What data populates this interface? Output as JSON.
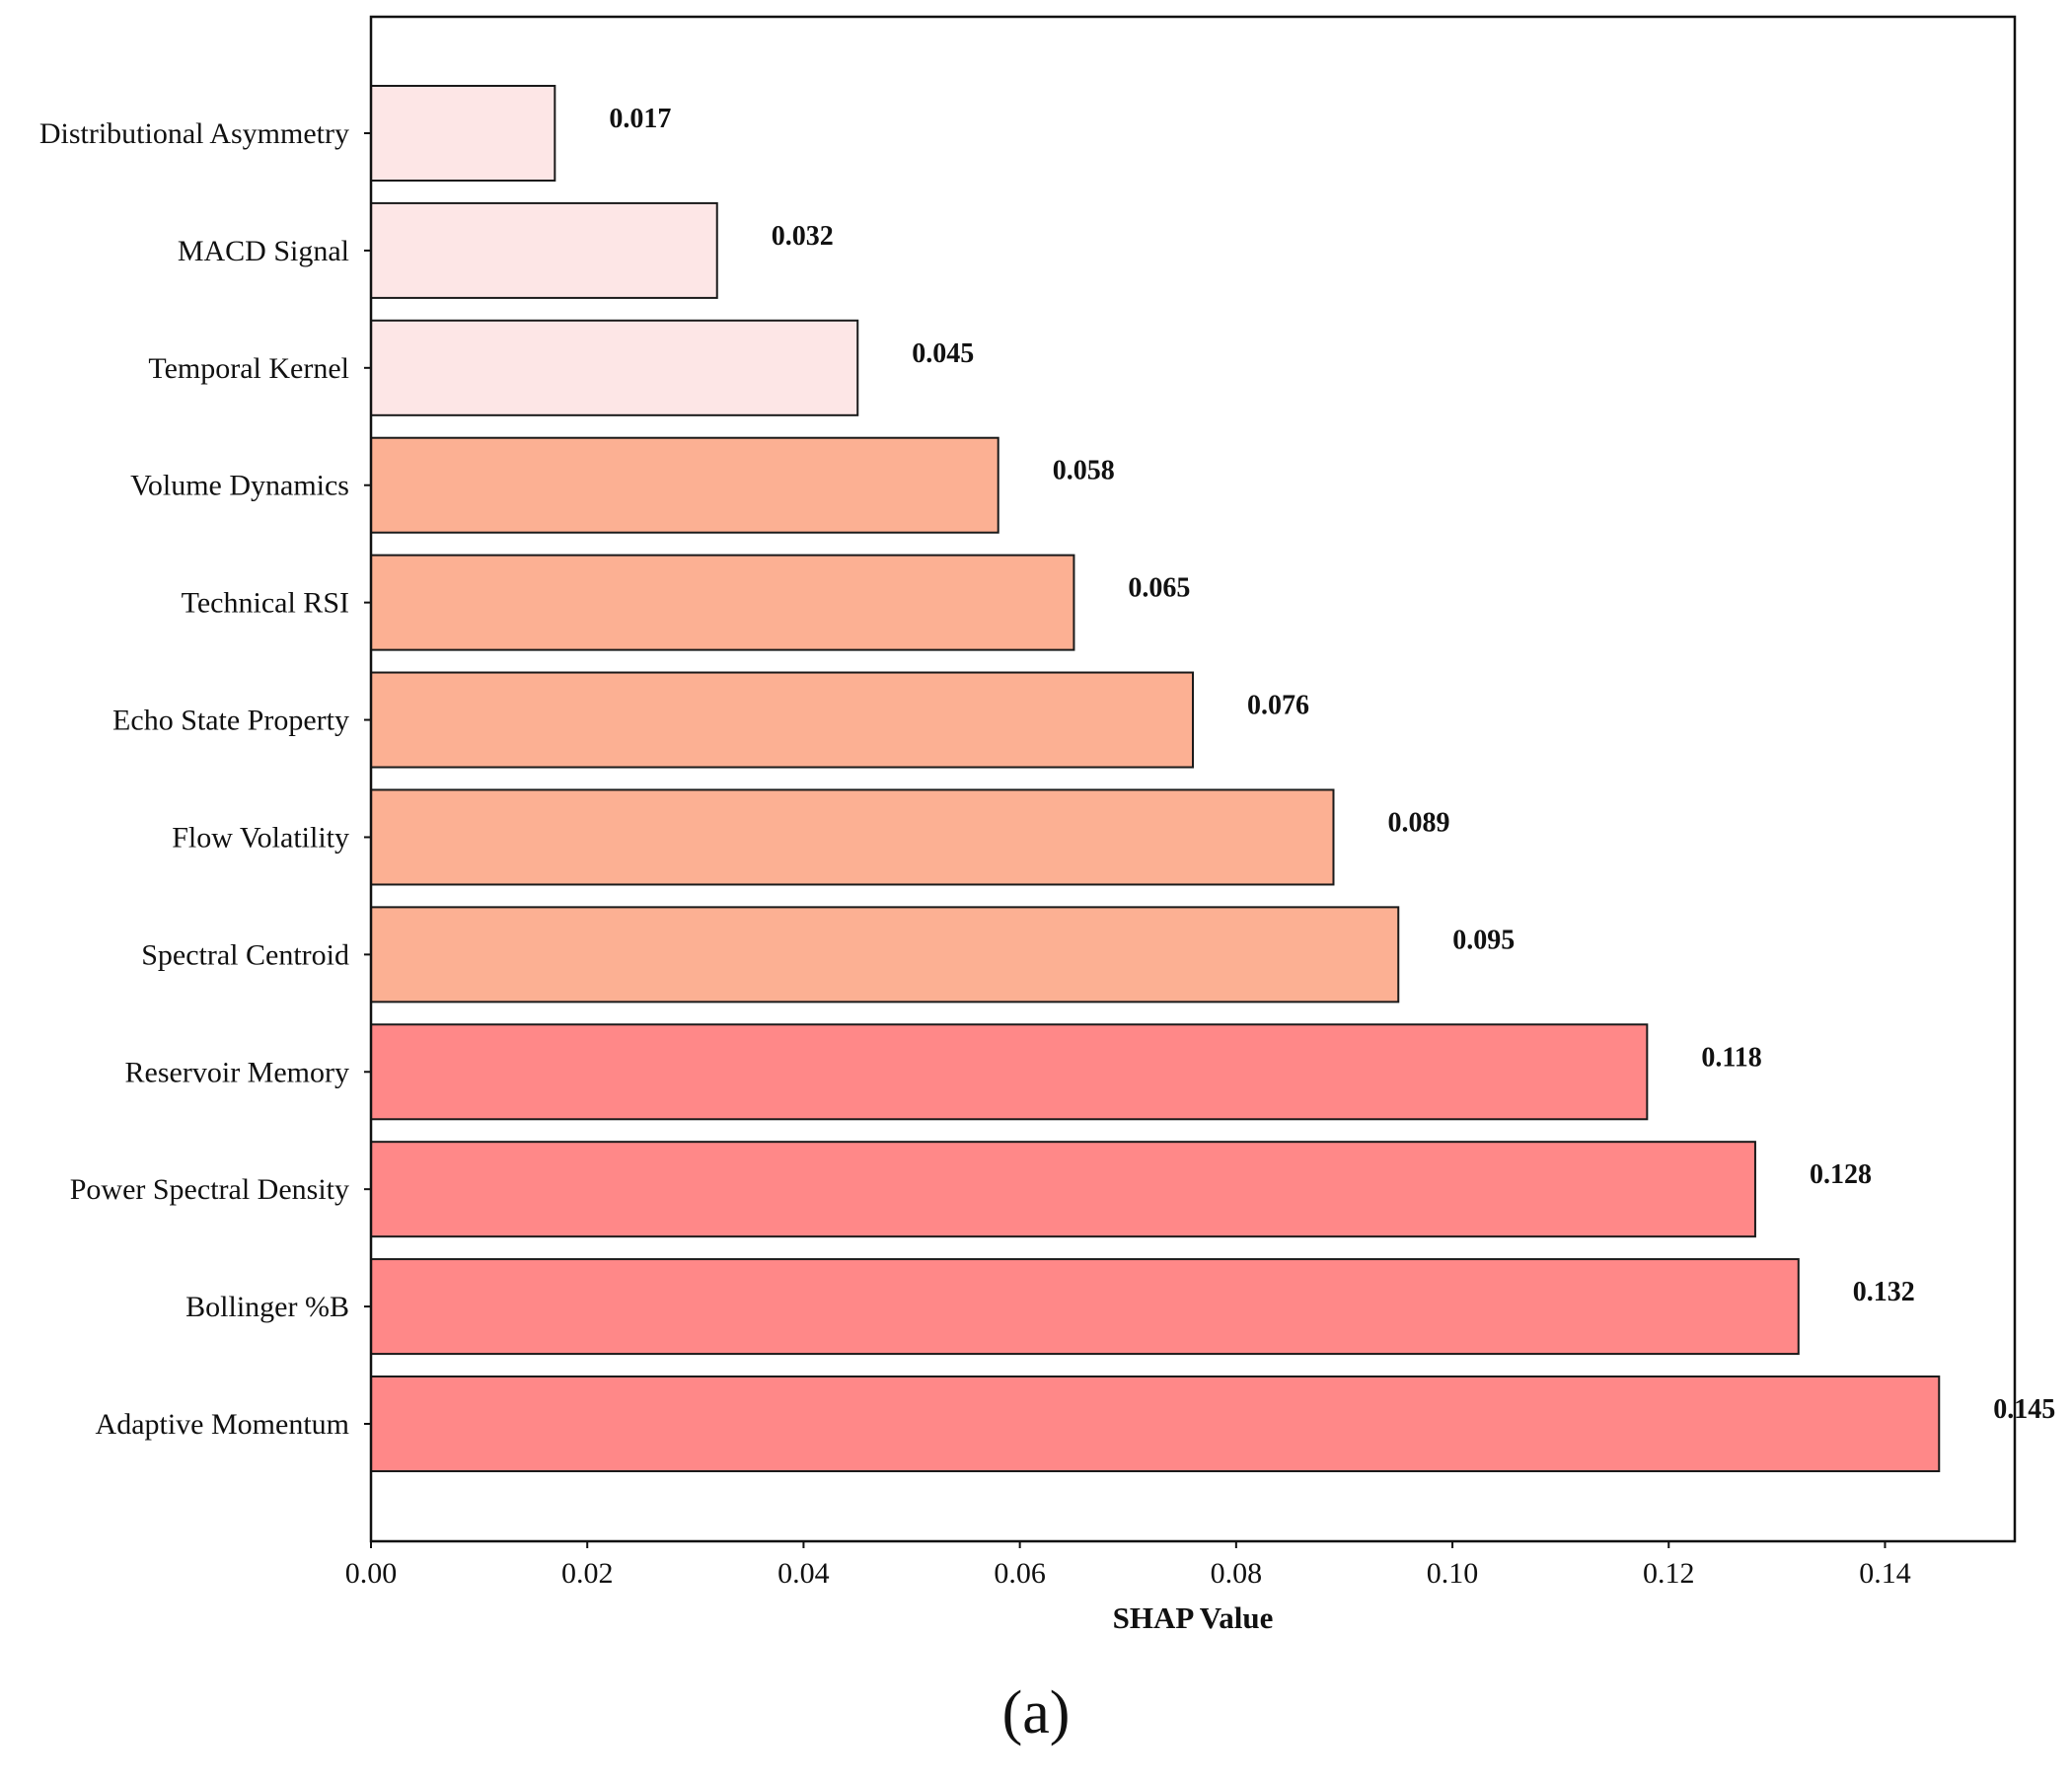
{
  "chart_data": {
    "type": "bar",
    "orientation": "horizontal",
    "categories": [
      "Distributional Asymmetry",
      "MACD Signal",
      "Temporal Kernel",
      "Volume Dynamics",
      "Technical RSI",
      "Echo State Property",
      "Flow Volatility",
      "Spectral Centroid",
      "Reservoir Memory",
      "Power Spectral Density",
      "Bollinger %B",
      "Adaptive Momentum"
    ],
    "values": [
      0.017,
      0.032,
      0.045,
      0.058,
      0.065,
      0.076,
      0.089,
      0.095,
      0.118,
      0.128,
      0.132,
      0.145
    ],
    "value_labels": [
      "0.017",
      "0.032",
      "0.045",
      "0.058",
      "0.065",
      "0.076",
      "0.089",
      "0.095",
      "0.118",
      "0.128",
      "0.132",
      "0.145"
    ],
    "bar_colors": [
      "#fde6e6",
      "#fde6e6",
      "#fde6e6",
      "#fcb093",
      "#fcb093",
      "#fcb093",
      "#fcb093",
      "#fcb093",
      "#ff8888",
      "#ff8888",
      "#ff8888",
      "#ff8888"
    ],
    "edge_color": "#1a1a1a",
    "title": "",
    "xlabel": "SHAP Value",
    "ylabel": "",
    "xlim": [
      0.0,
      0.152
    ],
    "xticks": [
      0.0,
      0.02,
      0.04,
      0.06,
      0.08,
      0.1,
      0.12,
      0.14
    ],
    "xtick_labels": [
      "0.00",
      "0.02",
      "0.04",
      "0.06",
      "0.08",
      "0.10",
      "0.12",
      "0.14"
    ],
    "grid": false,
    "legend": "none"
  },
  "caption": "(a)"
}
